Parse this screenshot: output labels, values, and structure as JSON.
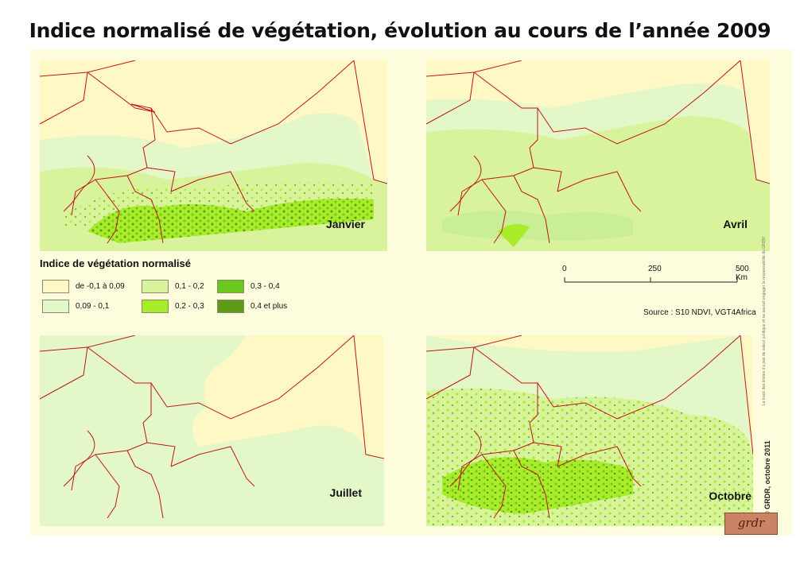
{
  "title": "Indice normalisé de végétation, évolution au cours de l’année 2009",
  "maps": [
    {
      "month": "Janvier"
    },
    {
      "month": "Avril"
    },
    {
      "month": "Juillet"
    },
    {
      "month": "Octobre"
    }
  ],
  "legend": {
    "title": "Indice de végétation normalisé",
    "items": [
      {
        "label": "de -0,1  à  0,09",
        "color": "#fdf8c4"
      },
      {
        "label": "0,1 - 0,2",
        "color": "#d8f39c"
      },
      {
        "label": "0,3 - 0,4",
        "color": "#6cc71c"
      },
      {
        "label": "0,09 - 0,1",
        "color": "#e4f7c9"
      },
      {
        "label": "0,2 - 0,3",
        "color": "#a8ec2a"
      },
      {
        "label": "0,4 et plus",
        "color": "#5d9a1a"
      }
    ]
  },
  "scale": {
    "labels": [
      "0",
      "250",
      "500 Km"
    ]
  },
  "source": "Source : S10 NDVI, VGT4Africa",
  "copyright": "© GRDR, octobre 2011",
  "disclaimer": "Le tracé des limites n'a pas de valeur juridique et ne saurait engager la responsabilité du GRDR",
  "logo": {
    "text": "grdr"
  },
  "colors": {
    "border": "#c0141c",
    "background": "#fdfdde"
  }
}
